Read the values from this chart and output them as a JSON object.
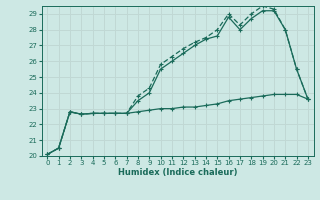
{
  "xlabel": "Humidex (Indice chaleur)",
  "bg_color": "#cde8e4",
  "grid_color": "#c0d8d4",
  "line_color": "#1a6b5a",
  "xlim": [
    -0.5,
    23.5
  ],
  "ylim": [
    20,
    29.5
  ],
  "xticks": [
    0,
    1,
    2,
    3,
    4,
    5,
    6,
    7,
    8,
    9,
    10,
    11,
    12,
    13,
    14,
    15,
    16,
    17,
    18,
    19,
    20,
    21,
    22,
    23
  ],
  "yticks": [
    20,
    21,
    22,
    23,
    24,
    25,
    26,
    27,
    28,
    29
  ],
  "line1_x": [
    0,
    1,
    2,
    3,
    4,
    5,
    6,
    7,
    8,
    9,
    10,
    11,
    12,
    13,
    14,
    15,
    16,
    17,
    18,
    19,
    20,
    21,
    22,
    23
  ],
  "line1_y": [
    20.1,
    20.5,
    22.8,
    22.65,
    22.7,
    22.7,
    22.7,
    22.7,
    22.8,
    22.9,
    23.0,
    23.0,
    23.1,
    23.1,
    23.2,
    23.3,
    23.5,
    23.6,
    23.7,
    23.8,
    23.9,
    23.9,
    23.9,
    23.6
  ],
  "line2_x": [
    0,
    1,
    2,
    3,
    4,
    5,
    6,
    7,
    8,
    9,
    10,
    11,
    12,
    13,
    14,
    15,
    16,
    17,
    18,
    19,
    20,
    21,
    22,
    23
  ],
  "line2_y": [
    20.1,
    20.5,
    22.8,
    22.65,
    22.7,
    22.7,
    22.7,
    22.7,
    23.5,
    24.0,
    25.5,
    26.0,
    26.5,
    27.0,
    27.4,
    27.6,
    28.8,
    28.0,
    28.7,
    29.2,
    29.2,
    28.0,
    25.5,
    23.6
  ],
  "line3_x": [
    0,
    1,
    2,
    3,
    4,
    5,
    6,
    7,
    8,
    9,
    10,
    11,
    12,
    13,
    14,
    15,
    16,
    17,
    18,
    19,
    20,
    21,
    22,
    23
  ],
  "line3_y": [
    20.1,
    20.5,
    22.8,
    22.65,
    22.7,
    22.7,
    22.7,
    22.7,
    23.8,
    24.3,
    25.8,
    26.3,
    26.8,
    27.2,
    27.5,
    28.0,
    29.0,
    28.3,
    29.0,
    29.5,
    29.3,
    28.0,
    25.5,
    23.6
  ]
}
